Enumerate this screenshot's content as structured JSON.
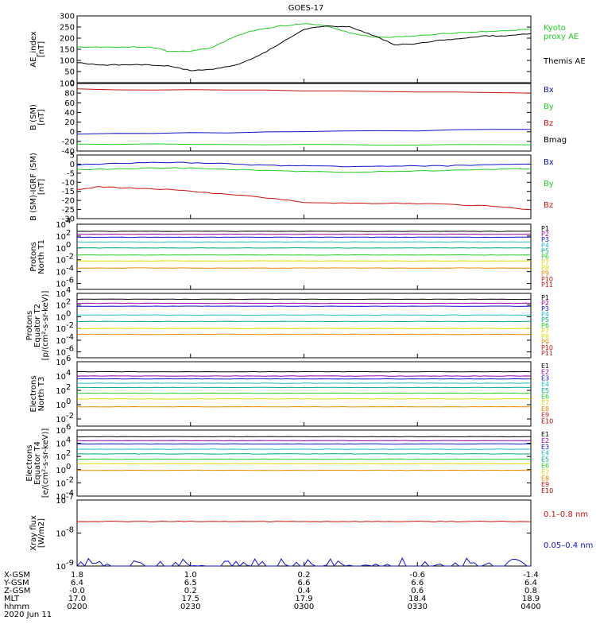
{
  "title": "GOES-17",
  "colors": {
    "black": "#000000",
    "green": "#22cc22",
    "blue": "#1010cc",
    "red": "#cc1111",
    "navy": "#000080",
    "cyan": "#22bbcc",
    "teal": "#00aa88",
    "yellow": "#dddd00",
    "orange": "#ee8800",
    "purple": "#9900aa",
    "dkred": "#aa0000"
  },
  "chart_data": [
    {
      "type": "line",
      "id": "ae",
      "ylabel": "AE_index\n[nT]",
      "ylim": [
        0,
        300
      ],
      "yticks": [
        "0",
        "50",
        "100",
        "150",
        "200",
        "250",
        "300"
      ],
      "series": [
        {
          "name": "Kyoto proxy AE",
          "color": "green",
          "x": [
            0,
            5,
            10,
            15,
            18,
            20,
            25,
            30,
            35,
            40,
            45,
            50,
            55,
            60,
            65,
            70,
            75,
            80,
            85,
            90,
            95,
            100
          ],
          "y": [
            160,
            160,
            160,
            160,
            155,
            140,
            140,
            160,
            210,
            240,
            255,
            265,
            255,
            225,
            205,
            205,
            210,
            220,
            225,
            230,
            235,
            240
          ]
        },
        {
          "name": "Themis AE",
          "color": "black",
          "x": [
            0,
            5,
            10,
            15,
            20,
            25,
            30,
            35,
            40,
            45,
            50,
            55,
            60,
            65,
            70,
            75,
            80,
            85,
            90,
            95,
            100
          ],
          "y": [
            90,
            80,
            80,
            80,
            75,
            55,
            60,
            80,
            120,
            180,
            240,
            255,
            250,
            215,
            170,
            175,
            190,
            200,
            210,
            210,
            220
          ]
        }
      ],
      "legend": [
        {
          "text": "Kyoto",
          "color": "green"
        },
        {
          "text": "proxy AE",
          "color": "green"
        },
        {
          "text": "Themis AE",
          "color": "black"
        }
      ]
    },
    {
      "type": "line",
      "id": "bsm",
      "ylabel": "B (SM)\n[nT]",
      "ylim": [
        -40,
        100
      ],
      "yticks": [
        "-40",
        "-20",
        "0",
        "20",
        "40",
        "60",
        "80",
        "100"
      ],
      "series": [
        {
          "name": "Bx",
          "color": "blue",
          "x": [
            0,
            50,
            100
          ],
          "y": [
            -5,
            0,
            5
          ]
        },
        {
          "name": "By",
          "color": "green",
          "x": [
            0,
            50,
            100
          ],
          "y": [
            -25,
            -27,
            -27
          ]
        },
        {
          "name": "Bz",
          "color": "red",
          "x": [
            0,
            50,
            100
          ],
          "y": [
            88,
            85,
            80
          ]
        }
      ],
      "legend": [
        {
          "text": "Bx",
          "color": "blue"
        },
        {
          "text": "By",
          "color": "green"
        },
        {
          "text": "Bz",
          "color": "red"
        },
        {
          "text": "Bmag",
          "color": "black"
        }
      ]
    },
    {
      "type": "line",
      "id": "bigrf",
      "ylabel": "B (SM)-IGRF (SM)\n[nT]",
      "ylim": [
        -30,
        5
      ],
      "yticks": [
        "-30",
        "-25",
        "-20",
        "-15",
        "-10",
        "-5",
        "0",
        "5"
      ],
      "series": [
        {
          "name": "Bx",
          "color": "blue",
          "x": [
            0,
            10,
            20,
            30,
            40,
            50,
            60,
            70,
            80,
            90,
            100
          ],
          "y": [
            -0.5,
            0.5,
            1,
            0.5,
            -0.5,
            -1,
            -1.5,
            -1,
            -1,
            -0.5,
            0
          ]
        },
        {
          "name": "By",
          "color": "green",
          "x": [
            0,
            10,
            20,
            30,
            40,
            50,
            60,
            70,
            80,
            90,
            100
          ],
          "y": [
            -3,
            -2.5,
            -2,
            -2.5,
            -3.5,
            -4,
            -4.5,
            -4,
            -3.5,
            -3,
            -2.5
          ]
        },
        {
          "name": "Bz",
          "color": "red",
          "x": [
            0,
            5,
            10,
            20,
            30,
            40,
            50,
            60,
            70,
            80,
            90,
            100
          ],
          "y": [
            -14,
            -12.5,
            -13,
            -14,
            -16,
            -18,
            -21,
            -21.5,
            -21.5,
            -22,
            -23,
            -25
          ]
        }
      ],
      "legend": [
        {
          "text": "Bx",
          "color": "blue"
        },
        {
          "text": "By",
          "color": "green"
        },
        {
          "text": "Bz",
          "color": "red"
        }
      ]
    },
    {
      "type": "line",
      "id": "pn",
      "ylabel": "Protons\nNorth T1",
      "ylim": [
        -7,
        4
      ],
      "ytick_exps": [
        "4",
        "2",
        "0",
        "-2",
        "-4",
        "-6"
      ],
      "series": [
        {
          "name": "P1",
          "color": "black",
          "y": 2.8
        },
        {
          "name": "P2",
          "color": "purple",
          "y": 2.3
        },
        {
          "name": "P3",
          "color": "blue",
          "y": 1.8
        },
        {
          "name": "P4",
          "color": "cyan",
          "y": 1.0
        },
        {
          "name": "P5",
          "color": "teal",
          "y": 0.0
        },
        {
          "name": "P6",
          "color": "green",
          "y": -1.2
        },
        {
          "name": "P7",
          "color": "yellow",
          "y": -2.2
        },
        {
          "name": "P8",
          "color": "orange",
          "y": -3.4
        }
      ],
      "legend": [
        "P1",
        "P2",
        "P3",
        "P4",
        "P5",
        "P6",
        "P7",
        "P8",
        "P9",
        "P10",
        "P11"
      ],
      "legend_colors": [
        "black",
        "purple",
        "blue",
        "cyan",
        "teal",
        "green",
        "yellow",
        "yellow",
        "orange",
        "red",
        "red"
      ]
    },
    {
      "type": "line",
      "id": "pe",
      "ylabel": "Protons\nEquator T2\n[p/(cm²-s-sr-keV)]",
      "ylim": [
        -7,
        4
      ],
      "ytick_exps": [
        "4",
        "2",
        "0",
        "-2",
        "-4",
        "-6"
      ],
      "series": [
        {
          "name": "P1",
          "color": "black",
          "y": 3.0
        },
        {
          "name": "P2",
          "color": "purple",
          "y": 2.3
        },
        {
          "name": "P3",
          "color": "blue",
          "y": 1.8
        },
        {
          "name": "P4",
          "color": "cyan",
          "y": 0.3
        },
        {
          "name": "P5",
          "color": "teal",
          "y": -0.8
        },
        {
          "name": "P6",
          "color": "yellow",
          "y": -2.0
        },
        {
          "name": "P7",
          "color": "orange",
          "y": -3.0
        }
      ],
      "legend": [
        "P1",
        "P2",
        "P3",
        "P4",
        "P5",
        "P6",
        "P7",
        "P8",
        "P9",
        "P10",
        "P11"
      ],
      "legend_colors": [
        "black",
        "purple",
        "blue",
        "cyan",
        "teal",
        "green",
        "yellow",
        "yellow",
        "orange",
        "red",
        "red"
      ]
    },
    {
      "type": "line",
      "id": "en",
      "ylabel": "Electrons\nNorth T3",
      "ylim": [
        -3,
        6
      ],
      "ytick_exps": [
        "6",
        "4",
        "2",
        "0",
        "-2"
      ],
      "series": [
        {
          "name": "E1",
          "color": "black",
          "y": 4.6
        },
        {
          "name": "E2",
          "color": "purple",
          "y": 4.0
        },
        {
          "name": "E3",
          "color": "blue",
          "y": 3.6
        },
        {
          "name": "E4",
          "color": "cyan",
          "y": 3.0
        },
        {
          "name": "E5",
          "color": "teal",
          "y": 2.4
        },
        {
          "name": "E6",
          "color": "green",
          "y": 1.6
        },
        {
          "name": "E7",
          "color": "yellow",
          "y": 0.8
        },
        {
          "name": "E8",
          "color": "orange",
          "y": -0.3
        }
      ],
      "legend": [
        "E1",
        "E2",
        "E3",
        "E4",
        "E5",
        "E6",
        "E7",
        "E8",
        "E9",
        "E10"
      ],
      "legend_colors": [
        "black",
        "purple",
        "blue",
        "cyan",
        "teal",
        "green",
        "yellow",
        "orange",
        "red",
        "dkred"
      ]
    },
    {
      "type": "line",
      "id": "ee",
      "ylabel": "Electrons\nEquator T4\n[e/(cm²-s-sr-keV)]",
      "ylim": [
        -4,
        6
      ],
      "ytick_exps": [
        "6",
        "4",
        "2",
        "0",
        "-2",
        "-4"
      ],
      "series": [
        {
          "name": "E1",
          "color": "black",
          "y": 5.0
        },
        {
          "name": "E2",
          "color": "purple",
          "y": 4.4
        },
        {
          "name": "E3",
          "color": "blue",
          "y": 3.9
        },
        {
          "name": "E4",
          "color": "cyan",
          "y": 3.1
        },
        {
          "name": "E5",
          "color": "teal",
          "y": 2.4
        },
        {
          "name": "E6",
          "color": "green",
          "y": 1.6
        },
        {
          "name": "E7",
          "color": "yellow",
          "y": 0.9
        },
        {
          "name": "E8",
          "color": "orange",
          "y": -0.1
        }
      ],
      "legend": [
        "E1",
        "E2",
        "E3",
        "E4",
        "E5",
        "E6",
        "E7",
        "E8",
        "E9",
        "E10"
      ],
      "legend_colors": [
        "black",
        "purple",
        "blue",
        "cyan",
        "teal",
        "green",
        "yellow",
        "orange",
        "red",
        "dkred"
      ]
    },
    {
      "type": "line",
      "id": "xray",
      "ylabel": "Xray flux\n[W/m2]",
      "ylim": [
        -9,
        -7
      ],
      "ytick_exps": [
        "-7",
        "-8",
        "-9"
      ],
      "series": [
        {
          "name": "0.1-0.8 nm",
          "color": "red",
          "y": -7.65
        },
        {
          "name": "0.05-0.4 nm",
          "color": "blue",
          "y": -8.9
        }
      ],
      "legend": [
        {
          "text": "0.1–0.8 nm",
          "color": "red"
        },
        {
          "text": "0.05–0.4 nm",
          "color": "blue"
        }
      ]
    }
  ],
  "xaxis": {
    "row_labels": [
      "X-GSM",
      "Y-GSM",
      "Z-GSM",
      "MLT",
      "hhmm",
      "2020 Jun 11"
    ],
    "columns": [
      [
        "1.8",
        "6.4",
        "-0.0",
        "17.0",
        "0200"
      ],
      [
        "1.0",
        "6.5",
        "0.2",
        "17.5",
        "0230"
      ],
      [
        "0.2",
        "6.6",
        "0.4",
        "17.9",
        "0300"
      ],
      [
        "-0.6",
        "6.6",
        "0.6",
        "18.4",
        "0330"
      ],
      [
        "-1.4",
        "6.4",
        "0.8",
        "18.9",
        "0400"
      ]
    ]
  }
}
